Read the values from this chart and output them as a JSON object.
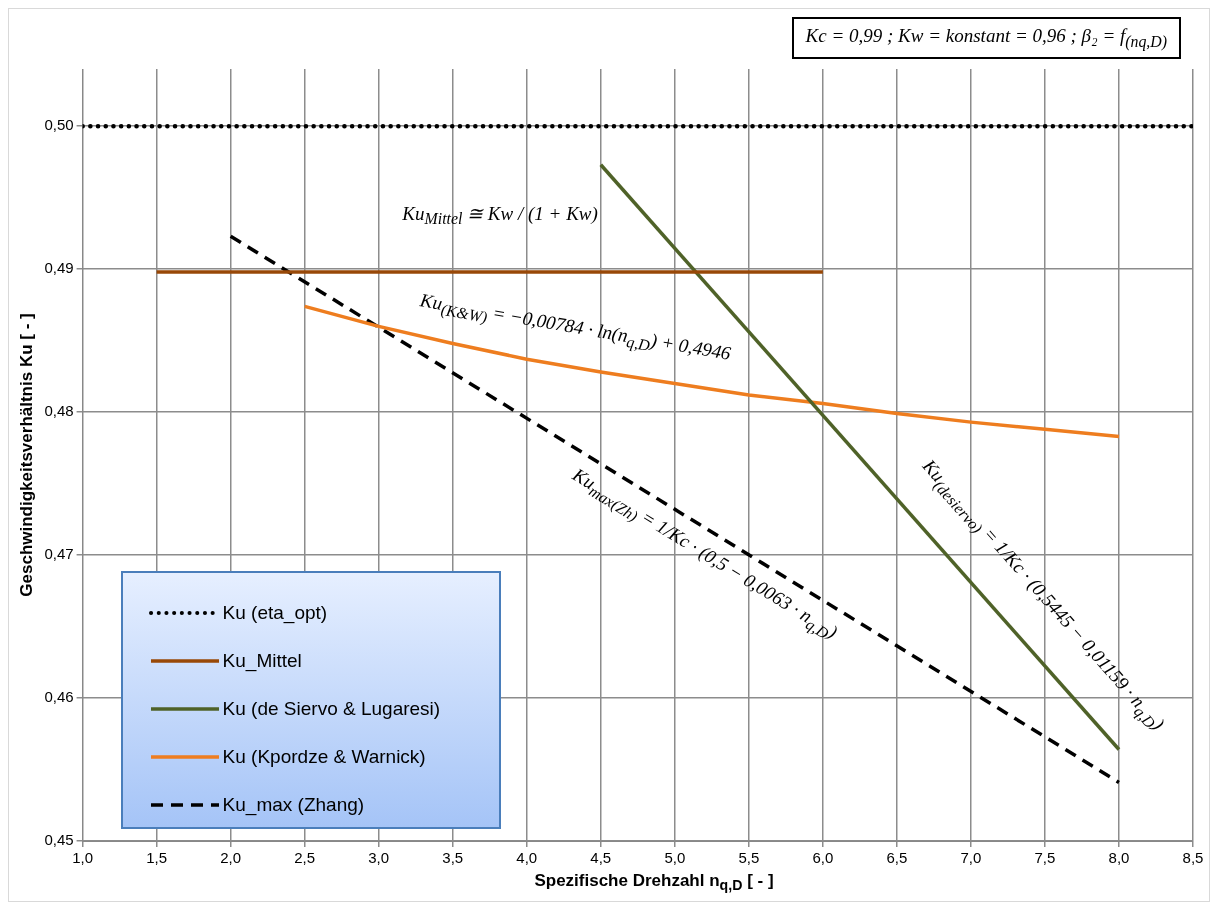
{
  "chart_data": {
    "type": "line",
    "xlabel": "Spezifische Drehzahl n$_{q,D}$ [ - ]",
    "ylabel": "Geschwindigkeitsverhältnis Ku [ - ]",
    "xlim": [
      1,
      8.5
    ],
    "xticks": [
      {
        "value": 1,
        "label": "1,0"
      },
      {
        "value": 1.5,
        "label": "1,5"
      },
      {
        "value": 2,
        "label": "2,0"
      },
      {
        "value": 2.5,
        "label": "2,5"
      },
      {
        "value": 3,
        "label": "3,0"
      },
      {
        "value": 3.5,
        "label": "3,5"
      },
      {
        "value": 4,
        "label": "4,0"
      },
      {
        "value": 4.5,
        "label": "4,5"
      },
      {
        "value": 5,
        "label": "5,0"
      },
      {
        "value": 5.5,
        "label": "5,5"
      },
      {
        "value": 6,
        "label": "6,0"
      },
      {
        "value": 6.5,
        "label": "6,5"
      },
      {
        "value": 7,
        "label": "7,0"
      },
      {
        "value": 7.5,
        "label": "7,5"
      },
      {
        "value": 8,
        "label": "8,0"
      },
      {
        "value": 8.5,
        "label": "8,5"
      }
    ],
    "ylim": [
      0.45,
      0.504
    ],
    "yticks": [
      {
        "value": 0.45,
        "label": "0,45"
      },
      {
        "value": 0.46,
        "label": "0,46"
      },
      {
        "value": 0.47,
        "label": "0,47"
      },
      {
        "value": 0.48,
        "label": "0,48"
      },
      {
        "value": 0.49,
        "label": "0,49"
      },
      {
        "value": 0.5,
        "label": "0,50"
      }
    ],
    "grid": true,
    "legend": "bottom left",
    "marker": "none",
    "series": [
      {
        "name": "Ku (eta_opt)",
        "color": "#000000",
        "line_style": "dotted",
        "x": [
          1,
          8.5
        ],
        "values": [
          0.5,
          0.5
        ]
      },
      {
        "name": "Ku_Mittel",
        "color": "#984807",
        "line_style": "solid",
        "x": [
          1.5,
          6
        ],
        "values": [
          0.4898,
          0.4898
        ]
      },
      {
        "name": "Ku (de Siervo & Lugaresi)",
        "color": "#4f6228",
        "line_style": "solid",
        "x": [
          4.5,
          8
        ],
        "values": [
          0.4973,
          0.4564
        ]
      },
      {
        "name": "Ku (Kpordze & Warnick)",
        "color": "#ee7d1f",
        "line_style": "solid",
        "x": [
          2.5,
          3,
          3.5,
          4,
          4.5,
          5,
          5.5,
          6,
          6.5,
          7,
          7.5,
          8
        ],
        "values": [
          0.4874,
          0.486,
          0.4848,
          0.4837,
          0.4828,
          0.482,
          0.4812,
          0.4806,
          0.4799,
          0.4793,
          0.4788,
          0.4783
        ]
      },
      {
        "name": "Ku_max (Zhang)",
        "color": "#000000",
        "line_style": "dashed",
        "x": [
          2,
          8
        ],
        "values": [
          0.4923,
          0.4541
        ]
      }
    ],
    "annotations": [
      "Kc = 0,99 ; Kw = konstant = 0,96 ; β₂ = f$_{(nq,D)}$",
      "Ku$_{Mittel}$ ≅ Kw / (1 + Kw)",
      "Ku$_{(K&W)}$ = −0,00784 · ln(n$_{q,D}$) + 0,4946",
      "Ku$_{max(Zh)}$ = 1/Kc · (0,5 − 0,0063 · n$_{q,D}$)",
      "Ku$_{(desiervo)}$ = 1/Kc · (0,5445 − 0,01159 · n$_{q,D}$)"
    ]
  }
}
